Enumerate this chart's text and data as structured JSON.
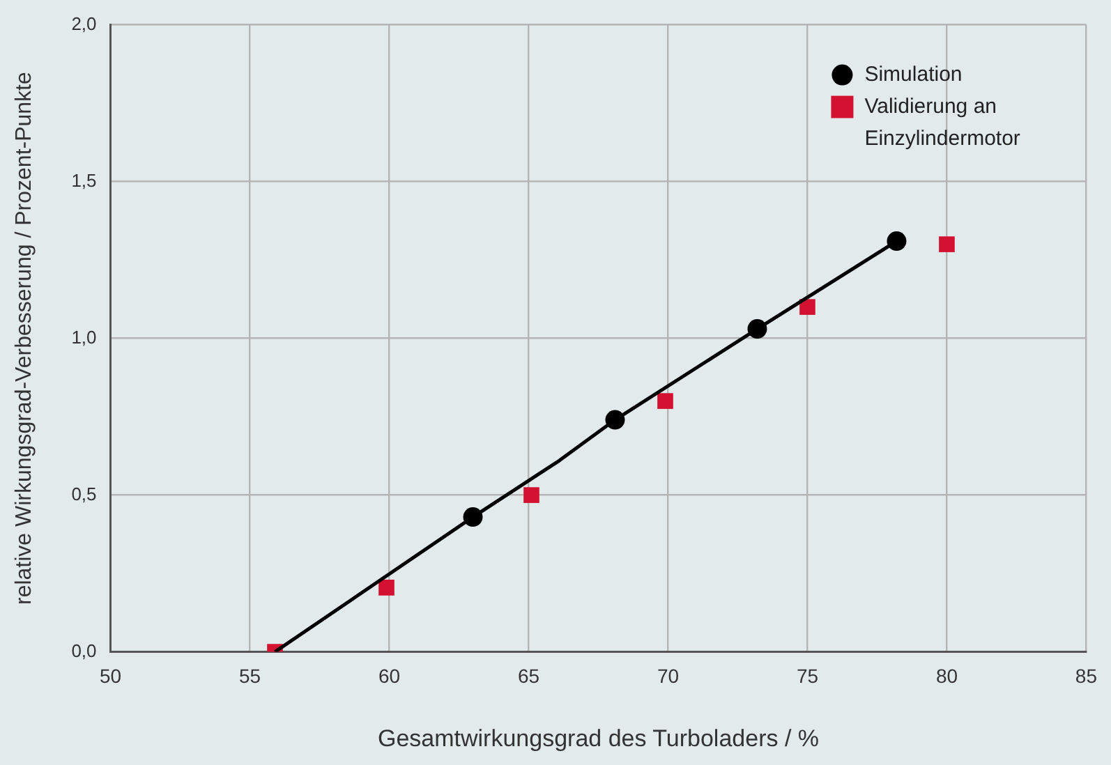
{
  "chart_data": {
    "type": "scatter",
    "xlabel": "Gesamtwirkungsgrad des Turboladers / %",
    "ylabel": "relative Wirkungsgrad-Verbesserung / Prozent-Punkte",
    "xlim": [
      50,
      85
    ],
    "xticks": [
      50,
      55,
      60,
      65,
      70,
      75,
      80,
      85
    ],
    "ylim": [
      0,
      2
    ],
    "yticks": [
      {
        "value": 0,
        "label": "0,0"
      },
      {
        "value": 0.5,
        "label": "0,5"
      },
      {
        "value": 1,
        "label": "1,0"
      },
      {
        "value": 1.5,
        "label": "1,5"
      },
      {
        "value": 2,
        "label": "2,0"
      }
    ],
    "grid": true,
    "legend": "top right",
    "series": [
      {
        "type": "line",
        "color": "#000000",
        "marker": "none",
        "line_style": "solid",
        "x": [
          55.9,
          63.0,
          66.1,
          68.1,
          73.2,
          78.2
        ],
        "values": [
          0,
          0.43,
          0.61,
          0.74,
          1.03,
          1.31
        ]
      },
      {
        "name": "Simulation",
        "color": "#000000",
        "marker": "circle",
        "x": [
          63.0,
          68.1,
          73.2,
          78.2
        ],
        "values": [
          0.43,
          0.74,
          1.03,
          1.31
        ]
      },
      {
        "name": "Validierung an Einzylindermotor",
        "color": "#d31130",
        "marker": "square",
        "x": [
          55.9,
          59.9,
          65.1,
          69.9,
          75.0,
          80.0
        ],
        "values": [
          0,
          0.205,
          0.5,
          0.8,
          1.1,
          1.3
        ]
      }
    ]
  }
}
